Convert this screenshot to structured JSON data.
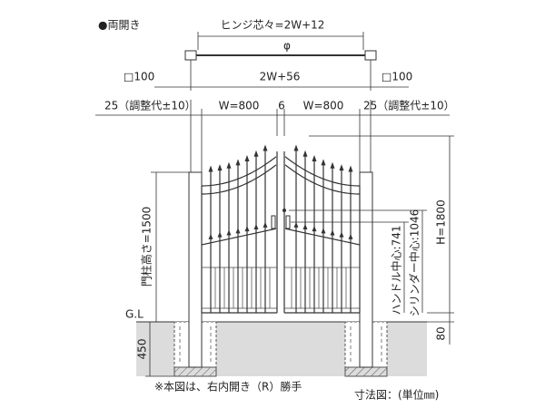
{
  "title": "●両開き",
  "dimensions": {
    "hinge_center": "ヒンジ芯々=2W+12",
    "post_left": "□100",
    "overall": "2W+56",
    "post_right": "□100",
    "adjust_left": "25（調整代±10）",
    "leaf_left": "W=800",
    "gap": "6",
    "leaf_right": "W=800",
    "adjust_right": "25（調整代±10）",
    "post_height": "門柱高さ=1500",
    "handle_center": "ハンドル中心:741",
    "cylinder_center": "シリンダー中心:1046",
    "height": "H=1800",
    "ground_level": "G.L",
    "foundation_depth": "450",
    "clearance": "80"
  },
  "notes": {
    "handing": "※本図は、右内開き（R）勝手",
    "unit": "寸法図：(単位㎜)"
  }
}
